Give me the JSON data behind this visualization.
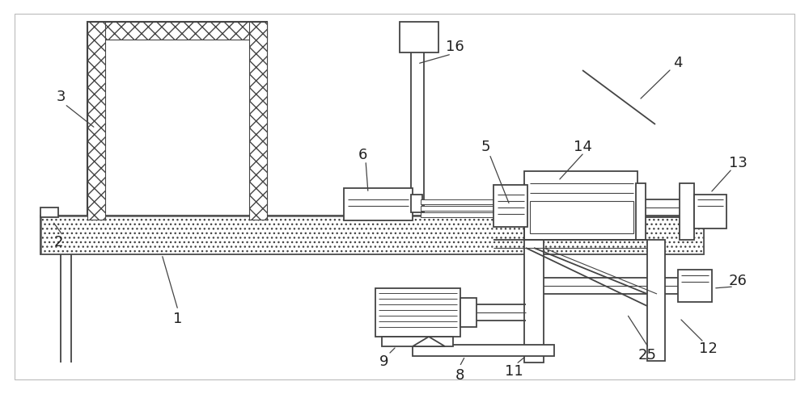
{
  "bg_color": "#ffffff",
  "lc": "#444444",
  "figsize": [
    10.0,
    4.89
  ],
  "lw": 1.3
}
